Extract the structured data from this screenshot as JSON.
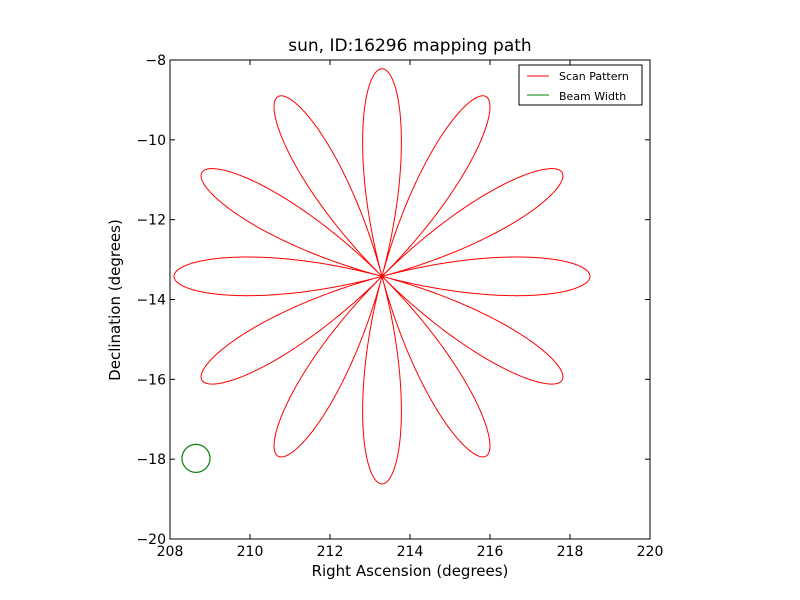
{
  "chart_data": {
    "type": "line",
    "title": "sun, ID:16296 mapping path",
    "xlabel": "Right Ascension (degrees)",
    "ylabel": "Declination (degrees)",
    "xlim": [
      208,
      220
    ],
    "ylim": [
      -20,
      -8
    ],
    "xticks": [
      208,
      210,
      212,
      214,
      216,
      218,
      220
    ],
    "yticks": [
      -20,
      -18,
      -16,
      -14,
      -12,
      -10,
      -8
    ],
    "xtick_labels": [
      "208",
      "210",
      "212",
      "214",
      "216",
      "218",
      "220"
    ],
    "ytick_labels": [
      "−20",
      "−18",
      "−16",
      "−14",
      "−12",
      "−10",
      "−8"
    ],
    "grid": false,
    "legend_position": "top-right",
    "series": [
      {
        "name": "Scan Pattern",
        "color": "#ff0000",
        "pattern": "rose",
        "center": [
          213.3,
          -13.42
        ],
        "petals": 12,
        "petal_length_deg": 5.2,
        "first_petal_angle_deg": 0
      },
      {
        "name": "Beam Width",
        "color": "#008000",
        "pattern": "circle",
        "center": [
          208.65,
          -17.98
        ],
        "radius_deg": 0.35
      }
    ]
  }
}
